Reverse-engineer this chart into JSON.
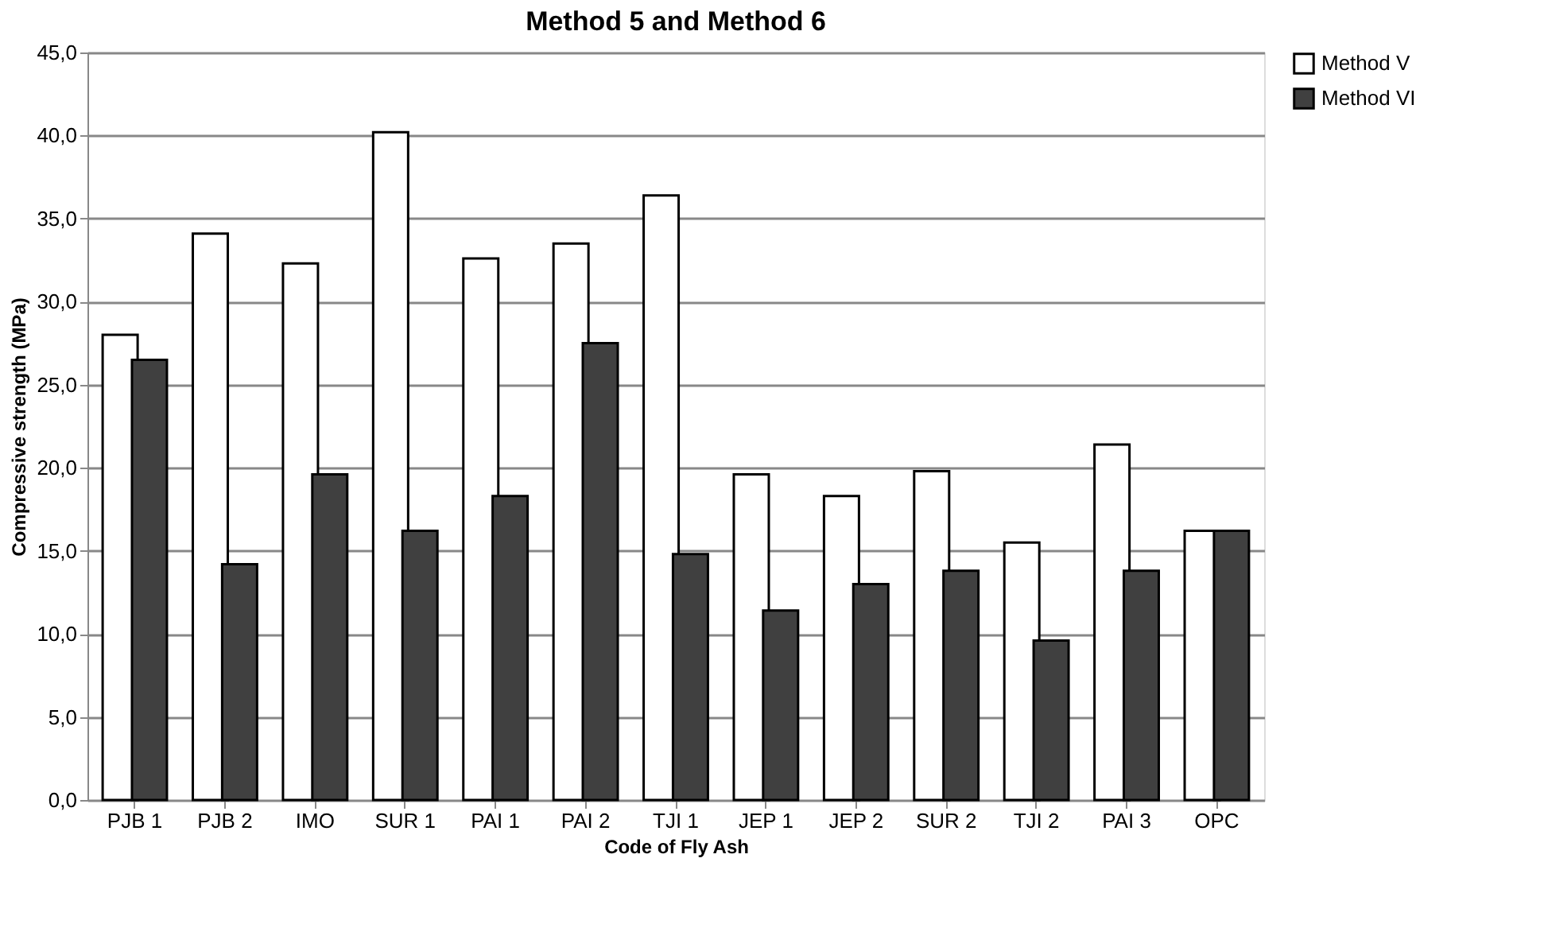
{
  "chart_data": {
    "type": "bar",
    "title": "Method 5 and Method 6",
    "xlabel": "Code of Fly Ash",
    "ylabel": "Compressive strength  (MPa)",
    "categories": [
      "PJB 1",
      "PJB 2",
      "IMO",
      "SUR 1",
      "PAI 1",
      "PAI 2",
      "TJI 1",
      "JEP 1",
      "JEP 2",
      "SUR 2",
      "TJI 2",
      "PAI 3",
      "OPC"
    ],
    "series": [
      {
        "name": "Method V",
        "color": "#ffffff",
        "values": [
          28.0,
          34.1,
          32.3,
          40.2,
          32.6,
          33.5,
          36.4,
          19.6,
          18.3,
          19.8,
          15.5,
          21.4,
          16.2
        ]
      },
      {
        "name": "Method VI",
        "color": "#404040",
        "values": [
          26.5,
          14.2,
          19.6,
          16.2,
          18.3,
          27.5,
          14.8,
          11.4,
          13.0,
          13.8,
          9.6,
          13.8,
          16.2
        ]
      }
    ],
    "ylim": [
      0,
      45
    ],
    "yticks": [
      {
        "value": 0,
        "label": "0,0"
      },
      {
        "value": 5,
        "label": "5,0"
      },
      {
        "value": 10,
        "label": "10,0"
      },
      {
        "value": 15,
        "label": "15,0"
      },
      {
        "value": 20,
        "label": "20,0"
      },
      {
        "value": 25,
        "label": "25,0"
      },
      {
        "value": 30,
        "label": "30,0"
      },
      {
        "value": 35,
        "label": "35,0"
      },
      {
        "value": 40,
        "label": "40,0"
      },
      {
        "value": 45,
        "label": "45,0"
      }
    ],
    "grid": "y",
    "legend": "right"
  }
}
